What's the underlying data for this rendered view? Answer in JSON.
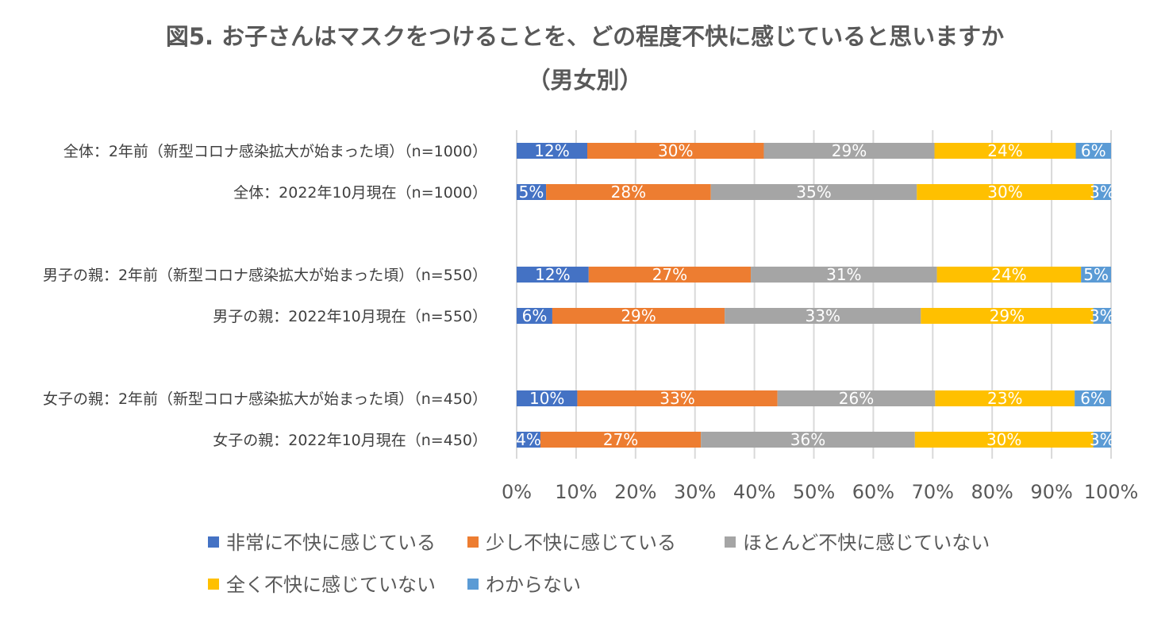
{
  "chart_data": {
    "type": "bar",
    "orientation": "horizontal",
    "stacked": true,
    "percent_stacked": true,
    "title": [
      "図5. お子さんはマスクをつけることを、どの程度不快に感じていると思いますか",
      "（男女別）"
    ],
    "categories": [
      "全体：2年前（新型コロナ感染拡大が始まった頃）（n=1000）",
      "全体：2022年10月現在（n=1000）",
      "男子の親：2年前（新型コロナ感染拡大が始まった頃）（n=550）",
      "男子の親：2022年10月現在（n=550）",
      "女子の親：2年前（新型コロナ感染拡大が始まった頃）（n=450）",
      "女子の親：2022年10月現在（n=450）"
    ],
    "series": [
      {
        "name": "非常に不快に感じている",
        "color": "#4472C4",
        "values": [
          12,
          5,
          12,
          6,
          10,
          4
        ],
        "labels": [
          "12%",
          "5%",
          "12%",
          "6%",
          "10%",
          "4%"
        ]
      },
      {
        "name": "少し不快に感じている",
        "color": "#ED7D31",
        "values": [
          30,
          28,
          27,
          29,
          33,
          27
        ],
        "labels": [
          "30%",
          "28%",
          "27%",
          "29%",
          "33%",
          "27%"
        ]
      },
      {
        "name": "ほとんど不快に感じていない",
        "color": "#A5A5A5",
        "values": [
          29,
          35,
          31,
          33,
          26,
          36
        ],
        "labels": [
          "29%",
          "35%",
          "31%",
          "33%",
          "26%",
          "36%"
        ]
      },
      {
        "name": "全く不快に感じていない",
        "color": "#FFC000",
        "values": [
          24,
          30,
          24,
          29,
          23,
          30
        ],
        "labels": [
          "24%",
          "30%",
          "24%",
          "29%",
          "23%",
          "30%"
        ]
      },
      {
        "name": "わからない",
        "color": "#5B9BD5",
        "values": [
          6,
          3,
          5,
          3,
          6,
          3
        ],
        "labels": [
          "6%",
          "3%",
          "5%",
          "3%",
          "6%",
          "3%"
        ]
      }
    ],
    "xlim": [
      0,
      100
    ],
    "xticks": [
      "0%",
      "10%",
      "20%",
      "30%",
      "40%",
      "50%",
      "60%",
      "70%",
      "80%",
      "90%",
      "100%"
    ],
    "grid": true,
    "legend_position": "bottom"
  }
}
